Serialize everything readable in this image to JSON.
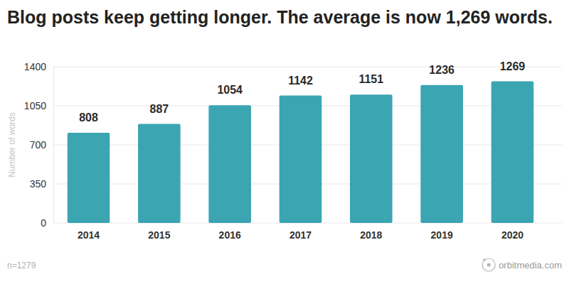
{
  "chart_data": {
    "type": "bar",
    "title": "Blog posts keep getting longer. The average is now 1,269 words.",
    "ylabel": "Number of words",
    "categories": [
      "2014",
      "2015",
      "2016",
      "2017",
      "2018",
      "2019",
      "2020"
    ],
    "values": [
      808,
      887,
      1054,
      1142,
      1151,
      1236,
      1269
    ],
    "color": "#3ba5b2",
    "ylim": [
      0,
      1400
    ],
    "yticks": [
      0,
      350,
      700,
      1050,
      1400
    ],
    "grid": true,
    "data_labels": true,
    "annotations": [
      "n=1279",
      "orbitmedia.com"
    ]
  }
}
